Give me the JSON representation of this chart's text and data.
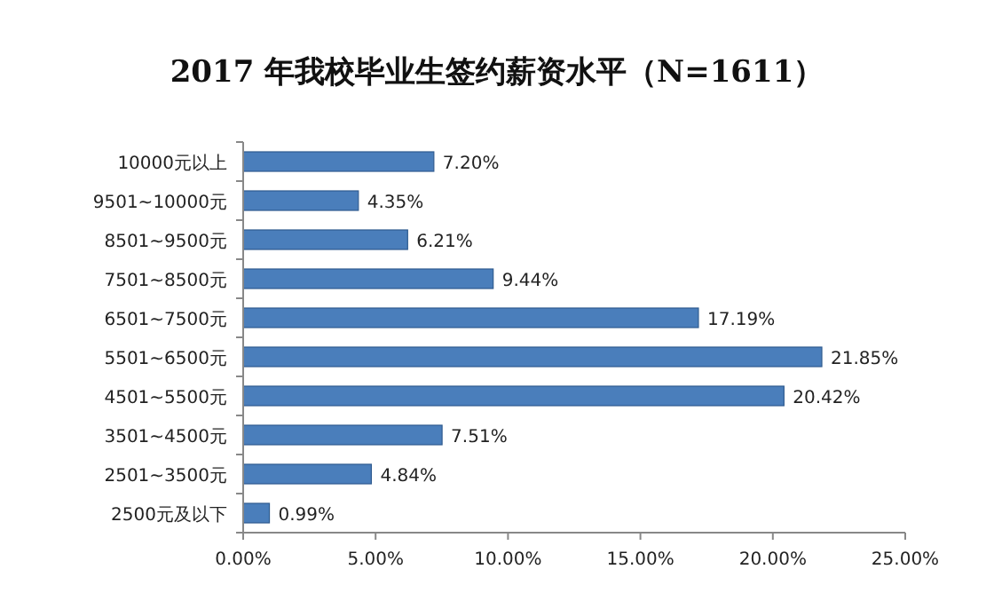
{
  "chart_data": {
    "type": "bar",
    "orientation": "horizontal",
    "title": "2017 年我校毕业生签约薪资水平（N=1611）",
    "categories": [
      "10000元以上",
      "9501~10000元",
      "8501~9500元",
      "7501~8500元",
      "6501~7500元",
      "5501~6500元",
      "4501~5500元",
      "3501~4500元",
      "2501~3500元",
      "2500元及以下"
    ],
    "values": [
      7.2,
      4.35,
      6.21,
      9.44,
      17.19,
      21.85,
      20.42,
      7.51,
      4.84,
      0.99
    ],
    "value_labels": [
      "7.20%",
      "4.35%",
      "6.21%",
      "9.44%",
      "17.19%",
      "21.85%",
      "20.42%",
      "7.51%",
      "4.84%",
      "0.99%"
    ],
    "color": "#4a7ebb",
    "xlim": [
      0,
      25
    ],
    "xticks": [
      {
        "value": 0,
        "label": "0.00%"
      },
      {
        "value": 5,
        "label": "5.00%"
      },
      {
        "value": 10,
        "label": "10.00%"
      },
      {
        "value": 15,
        "label": "15.00%"
      },
      {
        "value": 20,
        "label": "20.00%"
      },
      {
        "value": 25,
        "label": "25.00%"
      }
    ]
  }
}
